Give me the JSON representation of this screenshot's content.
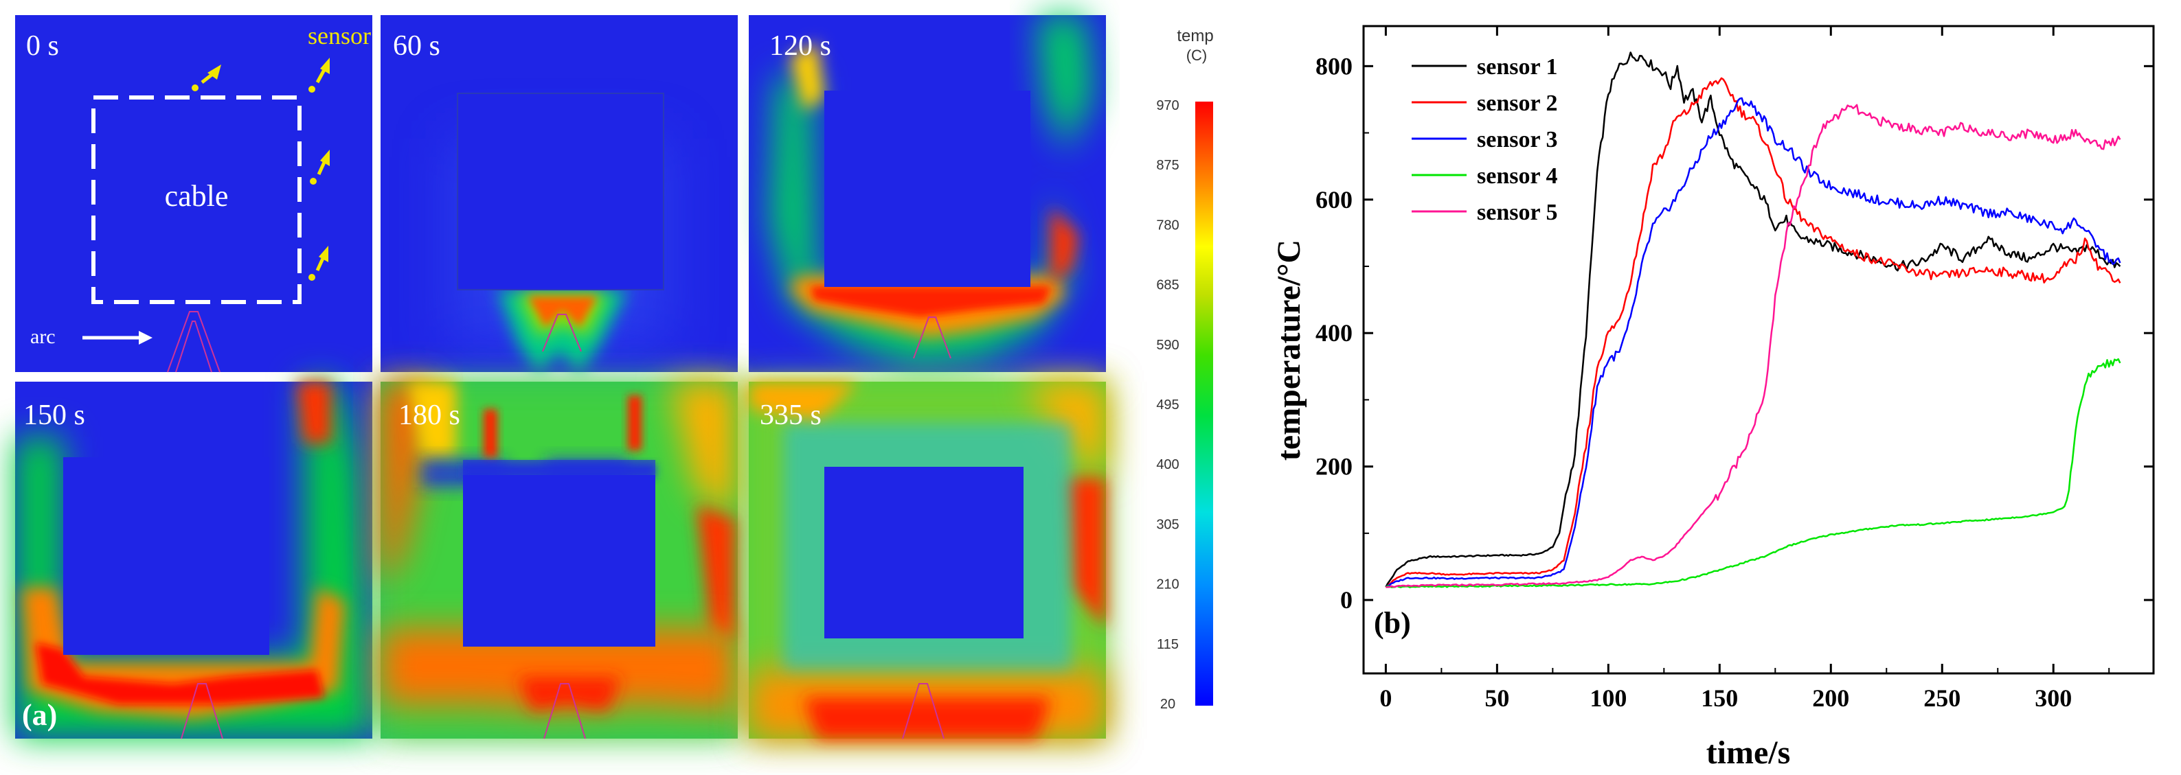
{
  "figure": {
    "panel_a_label": "(a)",
    "panel_b_label": "(b)"
  },
  "simulation": {
    "panels": [
      {
        "time": "0 s",
        "stage": 0
      },
      {
        "time": "60 s",
        "stage": 1
      },
      {
        "time": "120 s",
        "stage": 2
      },
      {
        "time": "150 s",
        "stage": 3
      },
      {
        "time": "180 s",
        "stage": 4
      },
      {
        "time": "335 s",
        "stage": 5
      }
    ],
    "annotations": {
      "sensor": "sensor",
      "cable": "cable",
      "arc": "arc"
    },
    "colorbar": {
      "title_line1": "temp",
      "title_line2": "(C)",
      "ticks": [
        "970",
        "875",
        "780",
        "685",
        "590",
        "495",
        "400",
        "305",
        "210",
        "115",
        "20"
      ]
    },
    "colors": {
      "background_blue": "#1f25e6",
      "annotation_yellow": "#f2e600",
      "cable_outline": "#ffffff"
    }
  },
  "chart_data": {
    "type": "line",
    "title": "",
    "xlabel": "time/s",
    "ylabel": "temperature/°C",
    "xlim": [
      -10,
      345
    ],
    "ylim": [
      -110,
      860
    ],
    "xticks": [
      0,
      50,
      100,
      150,
      200,
      250,
      300
    ],
    "yticks": [
      0,
      200,
      400,
      600,
      800
    ],
    "legend_position": "top-left",
    "series": [
      {
        "name": "sensor 1",
        "color": "#000000",
        "x": [
          0,
          5,
          10,
          20,
          30,
          40,
          50,
          60,
          65,
          70,
          75,
          78,
          80,
          85,
          90,
          95,
          100,
          105,
          110,
          115,
          120,
          125,
          128,
          131,
          134,
          138,
          142,
          146,
          150,
          155,
          160,
          165,
          170,
          175,
          180,
          185,
          190,
          200,
          210,
          220,
          230,
          240,
          250,
          260,
          270,
          280,
          290,
          300,
          305,
          310,
          315,
          320,
          325,
          330
        ],
        "y": [
          20,
          45,
          58,
          65,
          65,
          66,
          67,
          67,
          68,
          70,
          80,
          100,
          140,
          220,
          400,
          640,
          760,
          800,
          815,
          815,
          800,
          790,
          770,
          800,
          750,
          760,
          720,
          750,
          700,
          660,
          640,
          620,
          600,
          560,
          570,
          545,
          540,
          530,
          520,
          510,
          500,
          505,
          530,
          510,
          540,
          520,
          510,
          530,
          525,
          520,
          530,
          520,
          505,
          500
        ]
      },
      {
        "name": "sensor 2",
        "color": "#ff0000",
        "x": [
          0,
          5,
          10,
          20,
          30,
          40,
          50,
          60,
          65,
          70,
          75,
          80,
          85,
          90,
          95,
          100,
          105,
          110,
          115,
          120,
          125,
          130,
          135,
          140,
          145,
          150,
          155,
          160,
          165,
          170,
          175,
          180,
          185,
          190,
          200,
          210,
          220,
          230,
          240,
          250,
          260,
          270,
          280,
          290,
          300,
          305,
          310,
          315,
          320,
          325,
          330
        ],
        "y": [
          20,
          33,
          40,
          40,
          38,
          39,
          40,
          40,
          40,
          41,
          45,
          60,
          130,
          230,
          350,
          400,
          420,
          480,
          560,
          650,
          670,
          720,
          730,
          750,
          770,
          780,
          760,
          730,
          720,
          690,
          650,
          600,
          580,
          560,
          540,
          520,
          510,
          500,
          490,
          485,
          490,
          495,
          490,
          485,
          480,
          500,
          510,
          540,
          500,
          490,
          475
        ]
      },
      {
        "name": "sensor 3",
        "color": "#0000ff",
        "x": [
          0,
          5,
          10,
          20,
          30,
          40,
          50,
          60,
          65,
          70,
          75,
          80,
          85,
          90,
          95,
          100,
          105,
          110,
          115,
          120,
          125,
          130,
          135,
          140,
          145,
          150,
          155,
          160,
          165,
          170,
          175,
          180,
          185,
          190,
          200,
          210,
          220,
          230,
          240,
          250,
          260,
          270,
          280,
          290,
          300,
          305,
          310,
          315,
          320,
          325,
          330
        ],
        "y": [
          20,
          28,
          33,
          33,
          32,
          33,
          33,
          33,
          33,
          34,
          38,
          45,
          110,
          200,
          320,
          360,
          370,
          420,
          500,
          560,
          580,
          600,
          630,
          660,
          690,
          710,
          730,
          750,
          740,
          720,
          690,
          680,
          660,
          640,
          620,
          610,
          600,
          595,
          590,
          600,
          590,
          580,
          580,
          570,
          560,
          555,
          570,
          550,
          530,
          510,
          505
        ]
      },
      {
        "name": "sensor 4",
        "color": "#00e600",
        "x": [
          0,
          20,
          50,
          80,
          100,
          120,
          130,
          140,
          150,
          160,
          170,
          180,
          190,
          200,
          210,
          220,
          230,
          240,
          250,
          260,
          270,
          280,
          290,
          300,
          305,
          307,
          310,
          315,
          320,
          325,
          330
        ],
        "y": [
          20,
          20,
          21,
          22,
          23,
          24,
          28,
          35,
          45,
          55,
          65,
          80,
          90,
          98,
          103,
          108,
          112,
          113,
          115,
          118,
          120,
          123,
          126,
          132,
          140,
          160,
          260,
          330,
          350,
          355,
          355
        ]
      },
      {
        "name": "sensor 5",
        "color": "#ff1493",
        "x": [
          0,
          20,
          50,
          80,
          90,
          95,
          100,
          105,
          110,
          115,
          120,
          125,
          130,
          135,
          140,
          145,
          150,
          155,
          160,
          165,
          170,
          175,
          180,
          185,
          190,
          195,
          200,
          205,
          210,
          215,
          220,
          230,
          240,
          250,
          260,
          270,
          280,
          290,
          300,
          310,
          320,
          330
        ],
        "y": [
          20,
          22,
          23,
          25,
          28,
          30,
          35,
          45,
          60,
          65,
          60,
          65,
          80,
          100,
          120,
          140,
          160,
          190,
          220,
          260,
          300,
          450,
          550,
          600,
          650,
          700,
          720,
          730,
          740,
          725,
          720,
          710,
          705,
          700,
          710,
          700,
          695,
          700,
          690,
          700,
          680,
          690
        ]
      }
    ]
  }
}
